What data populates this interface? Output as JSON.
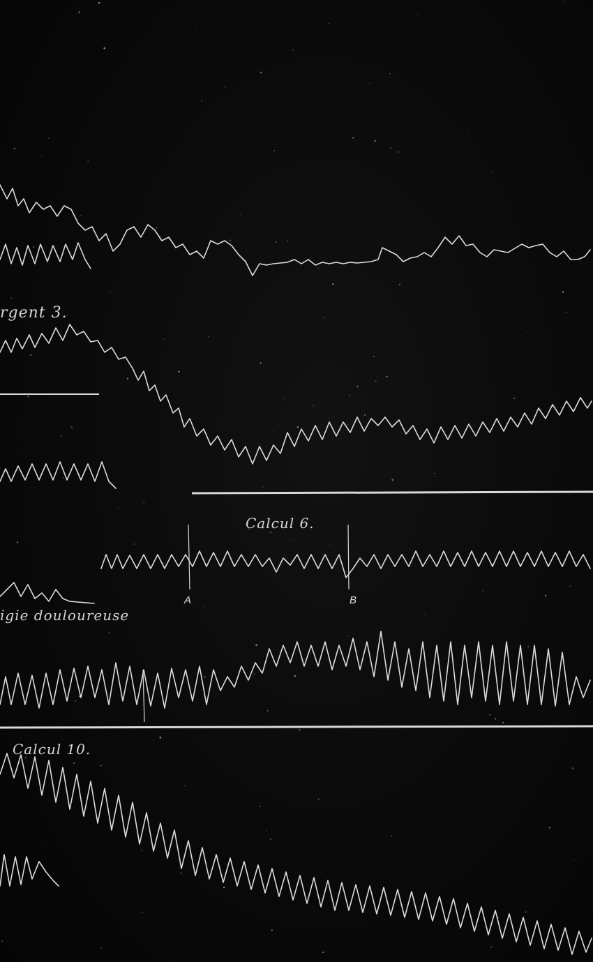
{
  "plate": {
    "background": "#0a0a0a",
    "trace_color": "#dcdcdc",
    "labels": {
      "argent": "rgent 3.",
      "calcul6": "Calcul 6.",
      "marker_a": "A",
      "marker_b": "B",
      "douloureuse": "igie douloureuse",
      "calcul10": "Calcul 10."
    }
  }
}
